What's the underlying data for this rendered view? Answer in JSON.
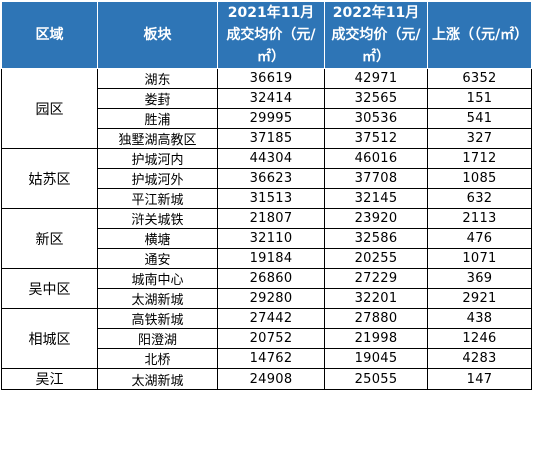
{
  "table": {
    "headers": [
      "区域",
      "板块",
      "2021年11月成交均价（元/㎡）",
      "2022年11月成交均价（元/㎡）",
      "上涨（（元/㎡）"
    ],
    "groups": [
      {
        "region": "园区",
        "rows": [
          [
            "湖东",
            "36619",
            "42971",
            "6352"
          ],
          [
            "娄葑",
            "32414",
            "32565",
            "151"
          ],
          [
            "胜浦",
            "29995",
            "30536",
            "541"
          ],
          [
            "独墅湖高教区",
            "37185",
            "37512",
            "327"
          ]
        ]
      },
      {
        "region": "姑苏区",
        "rows": [
          [
            "护城河内",
            "44304",
            "46016",
            "1712"
          ],
          [
            "护城河外",
            "36623",
            "37708",
            "1085"
          ],
          [
            "平江新城",
            "31513",
            "32145",
            "632"
          ]
        ]
      },
      {
        "region": "新区",
        "rows": [
          [
            "浒关城铁",
            "21807",
            "23920",
            "2113"
          ],
          [
            "横塘",
            "32110",
            "32586",
            "476"
          ],
          [
            "通安",
            "19184",
            "20255",
            "1071"
          ]
        ]
      },
      {
        "region": "吴中区",
        "rows": [
          [
            "城南中心",
            "26860",
            "27229",
            "369"
          ],
          [
            "太湖新城",
            "29280",
            "32201",
            "2921"
          ]
        ]
      },
      {
        "region": "相城区",
        "rows": [
          [
            "高铁新城",
            "27442",
            "27880",
            "438"
          ],
          [
            "阳澄湖",
            "20752",
            "21998",
            "1246"
          ],
          [
            "北桥",
            "14762",
            "19045",
            "4283"
          ]
        ]
      },
      {
        "region": "吴江",
        "rows": [
          [
            "太湖新城",
            "24908",
            "25055",
            "147"
          ]
        ]
      }
    ]
  }
}
